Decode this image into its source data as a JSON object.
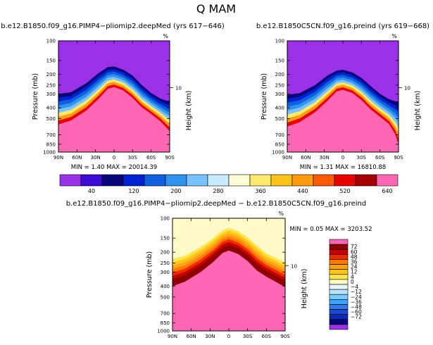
{
  "figure": {
    "title": "Q  MAM",
    "diff_title": "b.e12.B1850.f09_g16.PIMP4−pliomip2.deepMed  −  b.e12.B1850C5CN.f09_g16.preind"
  },
  "colors": {
    "abs_scale": [
      "#9a30e8",
      "#3d0bd6",
      "#08057a",
      "#0022d0",
      "#0e60df",
      "#2f93f0",
      "#7ac2ff",
      "#c8ebff",
      "#fffbd4",
      "#ffe86e",
      "#ffc21b",
      "#ff9a10",
      "#ff5a00",
      "#e60000",
      "#a30000",
      "#ff66b4"
    ],
    "diff_scale": [
      "#9a30e8",
      "#08057a",
      "#0e2ab5",
      "#1c48cf",
      "#2f7bea",
      "#3ea3ff",
      "#78ccff",
      "#b6e4ff",
      "#e8f7ff",
      "#fffac8",
      "#ffe64a",
      "#ffc61a",
      "#ffa21b",
      "#ff7a00",
      "#ee2a00",
      "#c40000",
      "#8e0000",
      "#ff66b4"
    ]
  },
  "chart_data": [
    {
      "type": "heatmap",
      "panel": "upper-left",
      "title": "b.e12.B1850.f09_g16.PIMP4−pliomip2.deepMed (yrs 617−646)",
      "xlabel": "",
      "ylabel": "Pressure  (mb)",
      "right_label": "Height  (km)",
      "right_tick": "10",
      "top_symbol": "%",
      "x_ticks": [
        "90N",
        "60N",
        "30N",
        "0",
        "30S",
        "60S",
        "90S"
      ],
      "x_lat": [
        90,
        60,
        30,
        0,
        -30,
        -60,
        -90
      ],
      "y_ticks": [
        100,
        150,
        200,
        250,
        300,
        400,
        500,
        700,
        850,
        1000
      ],
      "stats": "MIN =     1.40   MAX = 20014.39",
      "min": 1.4,
      "max": 20014.39,
      "field_shape": {
        "lat": [
          90,
          70,
          45,
          25,
          10,
          0,
          -15,
          -30,
          -45,
          -60,
          -75,
          -85,
          -90
        ],
        "top_contour_p": [
          300,
          290,
          240,
          195,
          172,
          170,
          182,
          205,
          250,
          295,
          330,
          345,
          345
        ],
        "bottom_contour_p": [
          610,
          560,
          455,
          355,
          285,
          275,
          295,
          345,
          420,
          480,
          560,
          650,
          700
        ]
      }
    },
    {
      "type": "heatmap",
      "panel": "upper-right",
      "title": "b.e12.B1850C5CN.f09_g16.preind (yrs 619−668)",
      "xlabel": "",
      "ylabel": "Pressure  (mb)",
      "right_label": "Height  (km)",
      "right_tick": "10",
      "top_symbol": "%",
      "x_ticks": [
        "90N",
        "60N",
        "30N",
        "0",
        "30S",
        "60S",
        "90S"
      ],
      "x_lat": [
        90,
        60,
        30,
        0,
        -30,
        -60,
        -90
      ],
      "y_ticks": [
        100,
        150,
        200,
        250,
        300,
        400,
        500,
        700,
        850,
        1000
      ],
      "stats": "MIN =     1.31   MAX = 16810.88",
      "min": 1.31,
      "max": 16810.88,
      "field_shape": {
        "lat": [
          90,
          70,
          45,
          25,
          10,
          0,
          -15,
          -30,
          -45,
          -60,
          -75,
          -85,
          -90
        ],
        "top_contour_p": [
          305,
          295,
          250,
          205,
          185,
          182,
          192,
          215,
          255,
          300,
          335,
          350,
          350
        ],
        "bottom_contour_p": [
          640,
          580,
          470,
          370,
          300,
          290,
          310,
          360,
          440,
          510,
          600,
          760,
          950
        ]
      }
    },
    {
      "type": "heatmap",
      "panel": "bottom-center",
      "title": "",
      "xlabel": "",
      "ylabel": "Pressure  (mb)",
      "right_label": "Height  (km)",
      "right_tick": "10",
      "top_symbol": "%",
      "x_ticks": [
        "90N",
        "60N",
        "30N",
        "0",
        "30S",
        "60S",
        "90S"
      ],
      "x_lat": [
        90,
        60,
        30,
        0,
        -30,
        -60,
        -90
      ],
      "y_ticks": [
        100,
        150,
        200,
        250,
        300,
        400,
        500,
        700,
        850,
        1000
      ],
      "stats": "MIN =     0.05   MAX =  3203.52",
      "min": 0.05,
      "max": 3203.52,
      "field_shape": {
        "lat": [
          90,
          70,
          45,
          25,
          10,
          0,
          -15,
          -30,
          -45,
          -60,
          -75,
          -85,
          -90
        ],
        "top_contour_p": [
          230,
          215,
          180,
          150,
          128,
          122,
          130,
          148,
          175,
          205,
          225,
          240,
          245
        ],
        "bottom_contour_p": [
          430,
          390,
          320,
          260,
          215,
          205,
          220,
          255,
          310,
          350,
          390,
          420,
          430
        ]
      }
    },
    {
      "type": "colorbar",
      "name": "absolute",
      "orientation": "horizontal",
      "labels": [
        "40",
        "120",
        "200",
        "280",
        "360",
        "440",
        "520",
        "640"
      ]
    },
    {
      "type": "colorbar",
      "name": "difference",
      "orientation": "vertical",
      "labels": [
        "72",
        "60",
        "48",
        "36",
        "24",
        "12",
        "4",
        "0",
        "−4",
        "−12",
        "−24",
        "−36",
        "−48",
        "−60",
        "−72"
      ]
    }
  ]
}
